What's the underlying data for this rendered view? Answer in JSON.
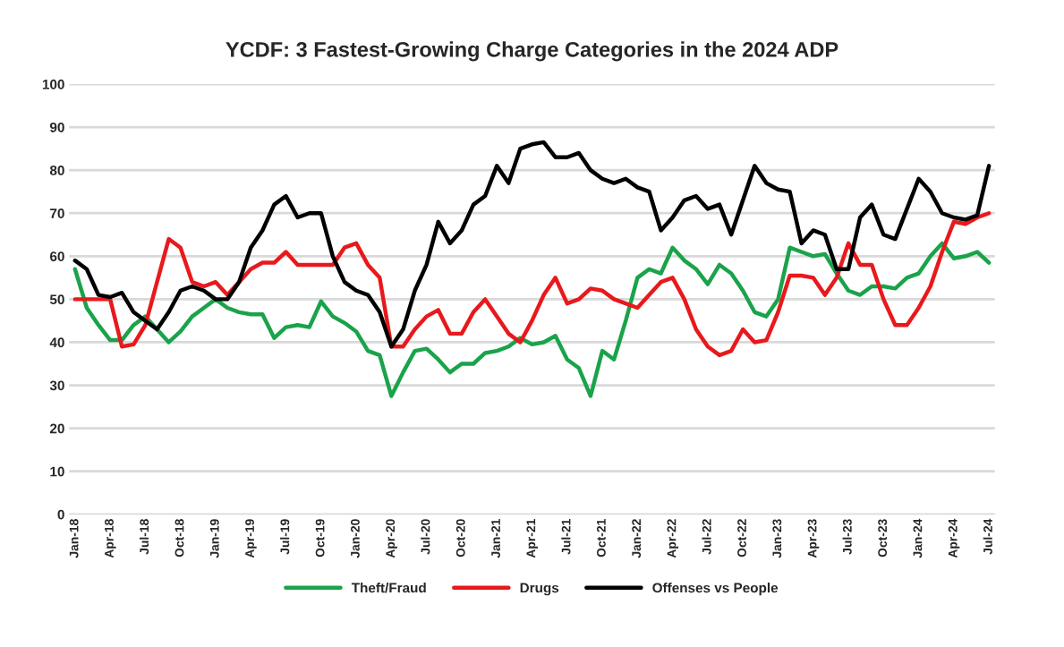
{
  "chart_data": {
    "type": "line",
    "title": "YCDF: 3 Fastest-Growing Charge Categories in the 2024 ADP",
    "categories": [
      "Jan-18",
      null,
      null,
      "Apr-18",
      null,
      null,
      "Jul-18",
      null,
      null,
      "Oct-18",
      null,
      null,
      "Jan-19",
      null,
      null,
      "Apr-19",
      null,
      null,
      "Jul-19",
      null,
      null,
      "Oct-19",
      null,
      null,
      "Jan-20",
      null,
      null,
      "Apr-20",
      null,
      null,
      "Jul-20",
      null,
      null,
      "Oct-20",
      null,
      null,
      "Jan-21",
      null,
      null,
      "Apr-21",
      null,
      null,
      "Jul-21",
      null,
      null,
      "Oct-21",
      null,
      null,
      "Jan-22",
      null,
      null,
      "Apr-22",
      null,
      null,
      "Jul-22",
      null,
      null,
      "Oct-22",
      null,
      null,
      "Jan-23",
      null,
      null,
      "Apr-23",
      null,
      null,
      "Jul-23",
      null,
      null,
      "Oct-23",
      null,
      null,
      "Jan-24",
      null,
      null,
      "Apr-24",
      null,
      null,
      "Jul-24"
    ],
    "series": [
      {
        "name": "Theft/Fraud",
        "color": "#1aa34a",
        "values": [
          57,
          48,
          44,
          40.5,
          40.5,
          44,
          46,
          43,
          40,
          42.5,
          46,
          48,
          50,
          48,
          47,
          46.5,
          46.5,
          41,
          43.5,
          44,
          43.5,
          49.5,
          46,
          44.5,
          42.5,
          38,
          37,
          27.5,
          33,
          38,
          38.5,
          36,
          33,
          35,
          35,
          37.5,
          38,
          39,
          41,
          39.5,
          40,
          41.5,
          36,
          34,
          27.5,
          38,
          36,
          45,
          55,
          57,
          56,
          62,
          59,
          57,
          53.5,
          58,
          56,
          52,
          47,
          46,
          50,
          62,
          61,
          60,
          60.5,
          56,
          52,
          51,
          53,
          53,
          52.5,
          55,
          56,
          60,
          63,
          59.5,
          60,
          61,
          58.5
        ]
      },
      {
        "name": "Drugs",
        "color": "#e8191c",
        "values": [
          50,
          50,
          50,
          50,
          39,
          39.5,
          44,
          54,
          64,
          62,
          54,
          53,
          54,
          51,
          54,
          57,
          58.5,
          58.5,
          61,
          58,
          58,
          58,
          58,
          62,
          63,
          58,
          55,
          39,
          39,
          43,
          46,
          47.5,
          42,
          42,
          47,
          50,
          46,
          42,
          40,
          45,
          51,
          55,
          49,
          50,
          52.5,
          52,
          50,
          49,
          48,
          51,
          54,
          55,
          50,
          43,
          39,
          37,
          38,
          43,
          40,
          40.5,
          47,
          55.5,
          55.5,
          55,
          51,
          55,
          63,
          58,
          58,
          50,
          44,
          44,
          48,
          53,
          61,
          68,
          67.5,
          69,
          70
        ]
      },
      {
        "name": "Offenses vs People",
        "color": "#000000",
        "values": [
          59,
          57,
          51,
          50.5,
          51.5,
          47,
          45,
          43,
          47,
          52,
          53,
          52,
          50,
          50,
          54,
          62,
          66,
          72,
          74,
          69,
          70,
          70,
          60,
          54,
          52,
          51,
          47,
          39,
          43,
          52,
          58,
          68,
          63,
          66,
          72,
          74,
          81,
          77,
          85,
          86,
          86.5,
          83,
          83,
          84,
          80,
          78,
          77,
          78,
          76,
          75,
          66,
          69,
          73,
          74,
          71,
          72,
          65,
          73,
          81,
          77,
          75.5,
          75,
          63,
          66,
          65,
          57,
          57,
          69,
          72,
          65,
          64,
          71,
          78,
          75,
          70,
          69,
          68.5,
          69.5,
          81
        ]
      }
    ],
    "ylim": [
      0,
      100
    ],
    "yticks": [
      0,
      10,
      20,
      30,
      40,
      50,
      60,
      70,
      80,
      90,
      100
    ],
    "grid": "y",
    "legend": "bottom",
    "line_style": "solid",
    "marker": "none"
  }
}
